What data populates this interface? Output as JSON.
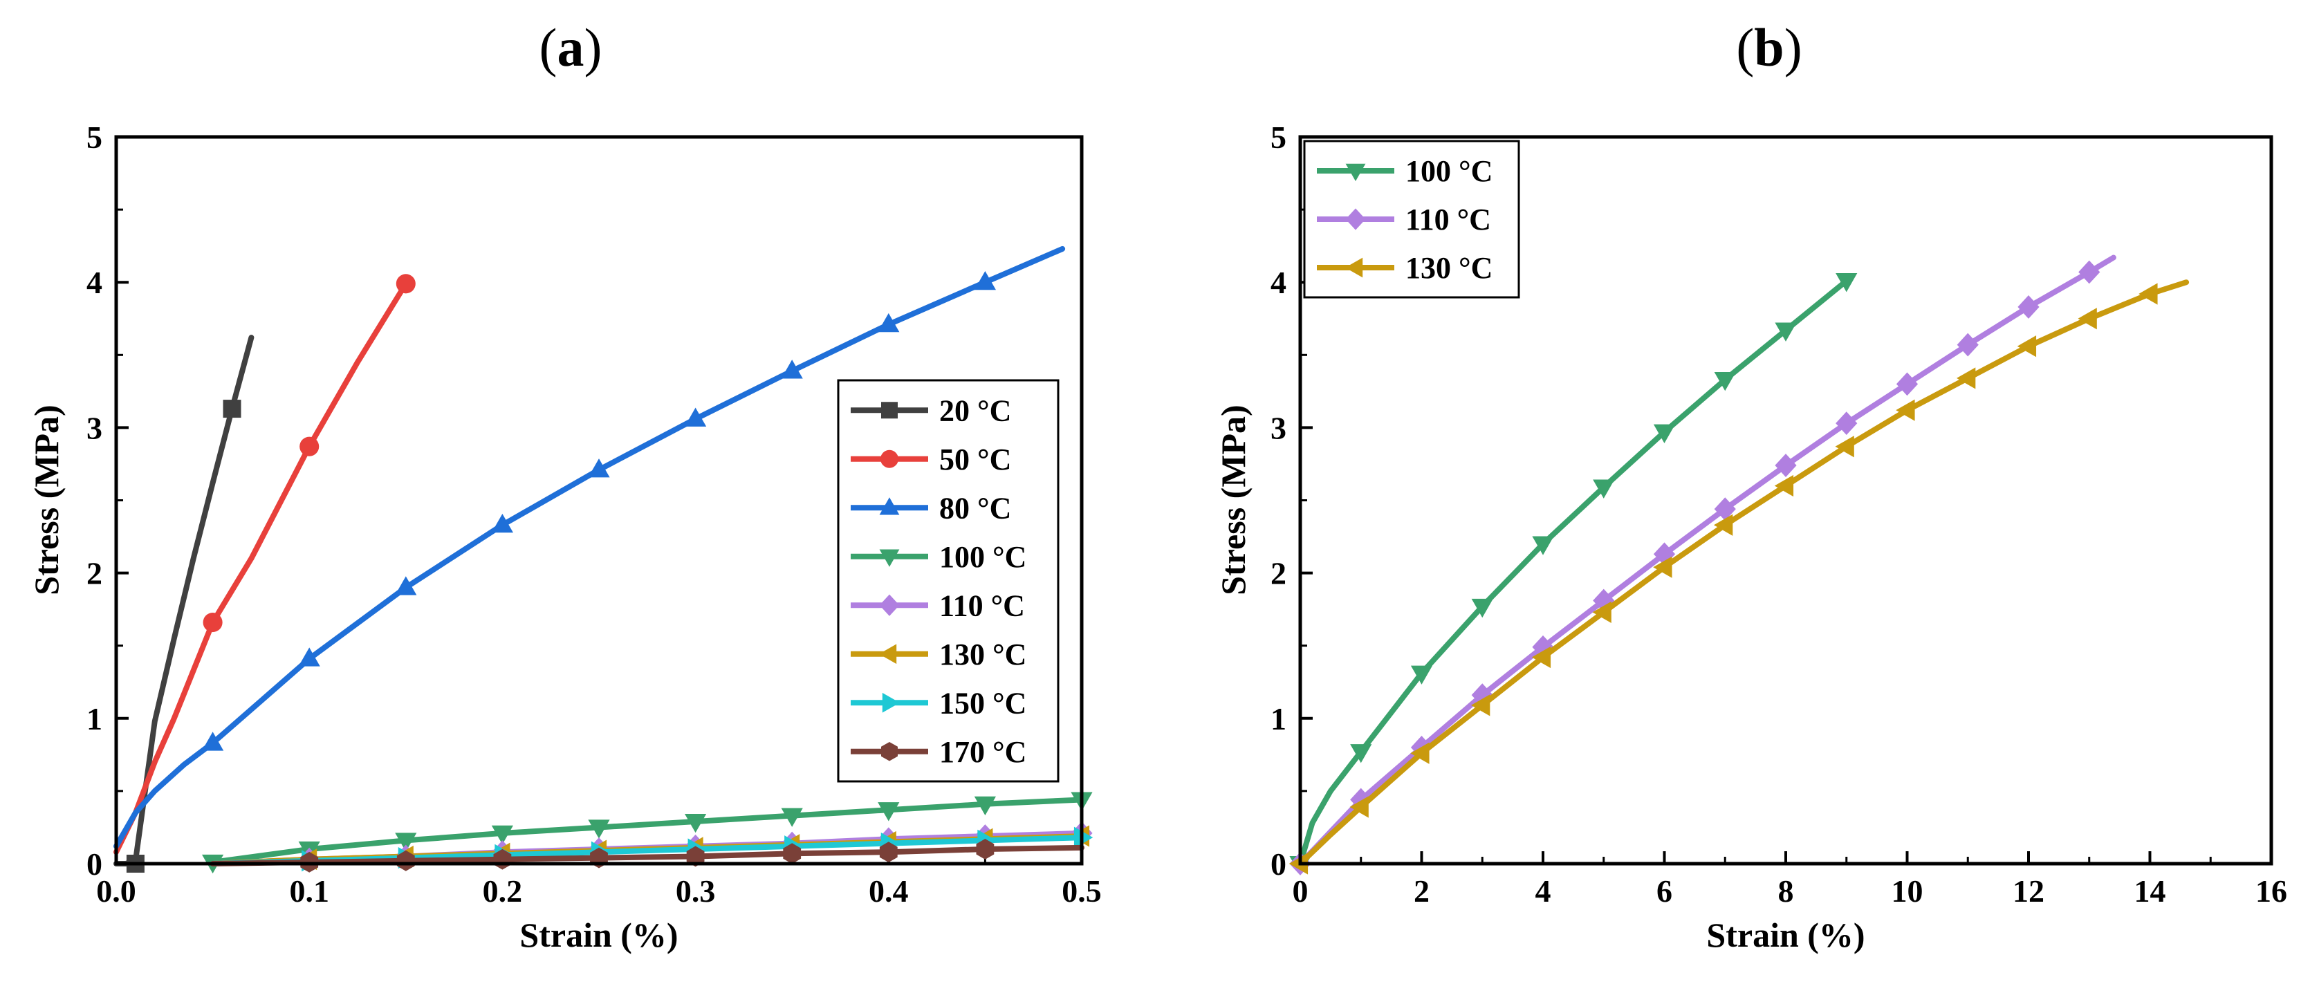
{
  "chart_data": [
    {
      "type": "line",
      "panel": "(a)",
      "panel_prefix": "(",
      "panel_letter": "a",
      "panel_suffix": ")",
      "xlabel": "Strain (%)",
      "ylabel": "Stress (MPa)",
      "xlim": [
        0,
        0.5
      ],
      "ylim": [
        0,
        5
      ],
      "xticks": [
        "0.0",
        "0.1",
        "0.2",
        "0.3",
        "0.4",
        "0.5"
      ],
      "xtick_values": [
        0,
        0.1,
        0.2,
        0.3,
        0.4,
        0.5
      ],
      "yticks": [
        "0",
        "1",
        "2",
        "3",
        "4",
        "5"
      ],
      "ytick_values": [
        0,
        1,
        2,
        3,
        4,
        5
      ],
      "legend_position": "right-center",
      "series": [
        {
          "name": "20 °C",
          "color": "#404040",
          "marker": "square",
          "x": [
            0,
            0.005,
            0.01,
            0.02,
            0.03,
            0.04,
            0.05,
            0.06,
            0.07
          ],
          "y": [
            0,
            0.0,
            0.02,
            0.98,
            1.55,
            2.1,
            2.62,
            3.13,
            3.62
          ],
          "marker_x": [
            0.01,
            0.06
          ],
          "marker_y": [
            0.0,
            3.13
          ]
        },
        {
          "name": "50 °C",
          "color": "#e8403b",
          "marker": "circle",
          "x": [
            0,
            0.01,
            0.02,
            0.03,
            0.05,
            0.07,
            0.1,
            0.125,
            0.15
          ],
          "y": [
            0.08,
            0.35,
            0.7,
            1.0,
            1.66,
            2.1,
            2.87,
            3.45,
            3.99
          ],
          "marker_x": [
            0.05,
            0.1,
            0.15
          ],
          "marker_y": [
            1.66,
            2.87,
            3.99
          ]
        },
        {
          "name": "80 °C",
          "color": "#1f6fd8",
          "marker": "triangle-up",
          "x": [
            0,
            0.01,
            0.02,
            0.035,
            0.05,
            0.075,
            0.1,
            0.15,
            0.2,
            0.25,
            0.3,
            0.35,
            0.4,
            0.45,
            0.49
          ],
          "y": [
            0.12,
            0.35,
            0.5,
            0.68,
            0.83,
            1.12,
            1.41,
            1.9,
            2.33,
            2.71,
            3.06,
            3.39,
            3.71,
            4.0,
            4.23
          ],
          "marker_x": [
            0.05,
            0.1,
            0.15,
            0.2,
            0.25,
            0.3,
            0.35,
            0.4,
            0.45
          ],
          "marker_y": [
            0.83,
            1.41,
            1.9,
            2.33,
            2.71,
            3.06,
            3.39,
            3.71,
            4.0
          ]
        },
        {
          "name": "100 °C",
          "color": "#3aa26c",
          "marker": "triangle-down",
          "x": [
            0.05,
            0.1,
            0.15,
            0.2,
            0.25,
            0.3,
            0.35,
            0.4,
            0.45,
            0.5
          ],
          "y": [
            0.01,
            0.1,
            0.16,
            0.21,
            0.25,
            0.29,
            0.33,
            0.37,
            0.41,
            0.44
          ],
          "marker_x": [
            0.05,
            0.1,
            0.15,
            0.2,
            0.25,
            0.3,
            0.35,
            0.4,
            0.45,
            0.5
          ],
          "marker_y": [
            0.01,
            0.1,
            0.16,
            0.21,
            0.25,
            0.29,
            0.33,
            0.37,
            0.41,
            0.44
          ]
        },
        {
          "name": "110 °C",
          "color": "#b07fe0",
          "marker": "diamond",
          "x": [
            0.05,
            0.1,
            0.15,
            0.2,
            0.25,
            0.3,
            0.35,
            0.4,
            0.45,
            0.5
          ],
          "y": [
            0.0,
            0.03,
            0.05,
            0.08,
            0.1,
            0.12,
            0.14,
            0.17,
            0.19,
            0.21
          ],
          "marker_x": [
            0.1,
            0.15,
            0.2,
            0.25,
            0.3,
            0.35,
            0.4,
            0.45,
            0.5
          ],
          "marker_y": [
            0.03,
            0.05,
            0.08,
            0.1,
            0.12,
            0.14,
            0.17,
            0.19,
            0.21
          ]
        },
        {
          "name": "130 °C",
          "color": "#c99a0e",
          "marker": "triangle-left",
          "x": [
            0.05,
            0.1,
            0.15,
            0.2,
            0.25,
            0.3,
            0.35,
            0.4,
            0.45,
            0.5
          ],
          "y": [
            0.0,
            0.03,
            0.05,
            0.07,
            0.09,
            0.11,
            0.13,
            0.15,
            0.17,
            0.19
          ],
          "marker_x": [
            0.1,
            0.15,
            0.2,
            0.25,
            0.3,
            0.35,
            0.4,
            0.45,
            0.5
          ],
          "marker_y": [
            0.03,
            0.05,
            0.07,
            0.09,
            0.11,
            0.13,
            0.15,
            0.17,
            0.19
          ]
        },
        {
          "name": "150 °C",
          "color": "#1ec8d4",
          "marker": "triangle-right",
          "x": [
            0.05,
            0.1,
            0.15,
            0.2,
            0.25,
            0.3,
            0.35,
            0.4,
            0.45,
            0.5
          ],
          "y": [
            0.0,
            0.02,
            0.04,
            0.06,
            0.08,
            0.1,
            0.12,
            0.14,
            0.16,
            0.18
          ],
          "marker_x": [
            0.1,
            0.15,
            0.2,
            0.25,
            0.3,
            0.35,
            0.4,
            0.45,
            0.5
          ],
          "marker_y": [
            0.02,
            0.04,
            0.06,
            0.08,
            0.1,
            0.12,
            0.14,
            0.16,
            0.18
          ]
        },
        {
          "name": "170 °C",
          "color": "#7a4038",
          "marker": "hexagon",
          "x": [
            0.05,
            0.1,
            0.15,
            0.2,
            0.25,
            0.3,
            0.35,
            0.4,
            0.45,
            0.5
          ],
          "y": [
            0.0,
            0.01,
            0.02,
            0.03,
            0.04,
            0.05,
            0.07,
            0.08,
            0.1,
            0.11
          ],
          "marker_x": [
            0.1,
            0.15,
            0.2,
            0.25,
            0.3,
            0.35,
            0.4,
            0.45
          ],
          "marker_y": [
            0.01,
            0.02,
            0.03,
            0.04,
            0.05,
            0.07,
            0.08,
            0.1
          ]
        }
      ]
    },
    {
      "type": "line",
      "panel": "(b)",
      "panel_prefix": "(",
      "panel_letter": "b",
      "panel_suffix": ")",
      "xlabel": "Strain (%)",
      "ylabel": "Stress (MPa)",
      "xlim": [
        0,
        16
      ],
      "ylim": [
        0,
        5
      ],
      "xticks": [
        "0",
        "2",
        "4",
        "6",
        "8",
        "10",
        "12",
        "14",
        "16"
      ],
      "xtick_values": [
        0,
        2,
        4,
        6,
        8,
        10,
        12,
        14,
        16
      ],
      "yticks": [
        "0",
        "1",
        "2",
        "3",
        "4",
        "5"
      ],
      "ytick_values": [
        0,
        1,
        2,
        3,
        4,
        5
      ],
      "legend_position": "top-left",
      "series": [
        {
          "name": "100 °C",
          "color": "#3aa26c",
          "marker": "triangle-down",
          "x": [
            0,
            0.2,
            0.5,
            1,
            2,
            3,
            4,
            5,
            6,
            7,
            8,
            9
          ],
          "y": [
            0,
            0.28,
            0.5,
            0.77,
            1.31,
            1.77,
            2.2,
            2.59,
            2.97,
            3.33,
            3.67,
            4.01
          ],
          "marker_x": [
            0,
            1,
            2,
            3,
            4,
            5,
            6,
            7,
            8,
            9
          ],
          "marker_y": [
            0,
            0.77,
            1.31,
            1.77,
            2.2,
            2.59,
            2.97,
            3.33,
            3.67,
            4.01
          ]
        },
        {
          "name": "110 °C",
          "color": "#b07fe0",
          "marker": "diamond",
          "x": [
            0,
            0.5,
            1,
            2,
            3,
            4,
            5,
            6,
            7,
            8,
            9,
            10,
            11,
            12,
            13,
            13.4
          ],
          "y": [
            0,
            0.22,
            0.44,
            0.8,
            1.16,
            1.49,
            1.81,
            2.13,
            2.44,
            2.74,
            3.03,
            3.3,
            3.57,
            3.83,
            4.07,
            4.17
          ],
          "marker_x": [
            0,
            1,
            2,
            3,
            4,
            5,
            6,
            7,
            8,
            9,
            10,
            11,
            12,
            13
          ],
          "marker_y": [
            0,
            0.44,
            0.8,
            1.16,
            1.49,
            1.81,
            2.13,
            2.44,
            2.74,
            3.03,
            3.3,
            3.57,
            3.83,
            4.07
          ]
        },
        {
          "name": "130 °C",
          "color": "#c99a0e",
          "marker": "triangle-left",
          "x": [
            0,
            0.5,
            1,
            2,
            3,
            4,
            5,
            6,
            7,
            8,
            9,
            10,
            11,
            12,
            13,
            14,
            14.6
          ],
          "y": [
            0,
            0.2,
            0.39,
            0.76,
            1.09,
            1.42,
            1.73,
            2.04,
            2.33,
            2.6,
            2.87,
            3.12,
            3.34,
            3.56,
            3.75,
            3.92,
            4.0
          ],
          "marker_x": [
            0,
            1,
            2,
            3,
            4,
            5,
            6,
            7,
            8,
            9,
            10,
            11,
            12,
            13,
            14
          ],
          "marker_y": [
            0,
            0.39,
            0.76,
            1.09,
            1.42,
            1.73,
            2.04,
            2.33,
            2.6,
            2.87,
            3.12,
            3.34,
            3.56,
            3.75,
            3.92
          ]
        }
      ]
    }
  ]
}
